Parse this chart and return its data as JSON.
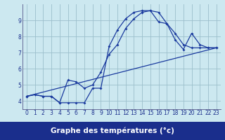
{
  "title": "Graphe des températures (°c)",
  "bg_color": "#cce8f0",
  "plot_bg_color": "#cce8f0",
  "footer_bg": "#1a2e8c",
  "line_color": "#1a3a9e",
  "grid_color": "#9bbfcc",
  "xlim": [
    -0.5,
    23.5
  ],
  "ylim": [
    3.5,
    10.0
  ],
  "xticks": [
    0,
    1,
    2,
    3,
    4,
    5,
    6,
    7,
    8,
    9,
    10,
    11,
    12,
    13,
    14,
    15,
    16,
    17,
    18,
    19,
    20,
    21,
    22,
    23
  ],
  "yticks": [
    4,
    5,
    6,
    7,
    8,
    9
  ],
  "curve1_x": [
    0,
    1,
    2,
    3,
    4,
    5,
    6,
    7,
    8,
    9,
    10,
    11,
    12,
    13,
    14,
    15,
    16,
    17,
    18,
    19,
    20,
    21,
    22,
    23
  ],
  "curve1_y": [
    4.3,
    4.4,
    4.3,
    4.3,
    3.9,
    3.9,
    3.9,
    3.9,
    4.8,
    4.8,
    7.4,
    8.4,
    9.1,
    9.5,
    9.6,
    9.6,
    8.9,
    8.8,
    8.2,
    7.5,
    7.3,
    7.3,
    7.3,
    7.3
  ],
  "curve2_x": [
    0,
    1,
    2,
    3,
    4,
    5,
    6,
    7,
    8,
    9,
    10,
    11,
    12,
    13,
    14,
    15,
    16,
    17,
    18,
    19,
    20,
    21,
    22,
    23
  ],
  "curve2_y": [
    4.3,
    4.4,
    4.3,
    4.3,
    3.9,
    5.3,
    5.2,
    4.8,
    5.0,
    5.8,
    6.9,
    7.5,
    8.5,
    9.1,
    9.5,
    9.6,
    9.5,
    8.8,
    7.8,
    7.2,
    8.2,
    7.5,
    7.3,
    7.3
  ],
  "curve3_x": [
    0,
    23
  ],
  "curve3_y": [
    4.3,
    7.3
  ],
  "xlabel_text": "Graphe des températures (°c)",
  "xlabel_color": "#ffffff",
  "xlabel_fontsize": 7.5
}
